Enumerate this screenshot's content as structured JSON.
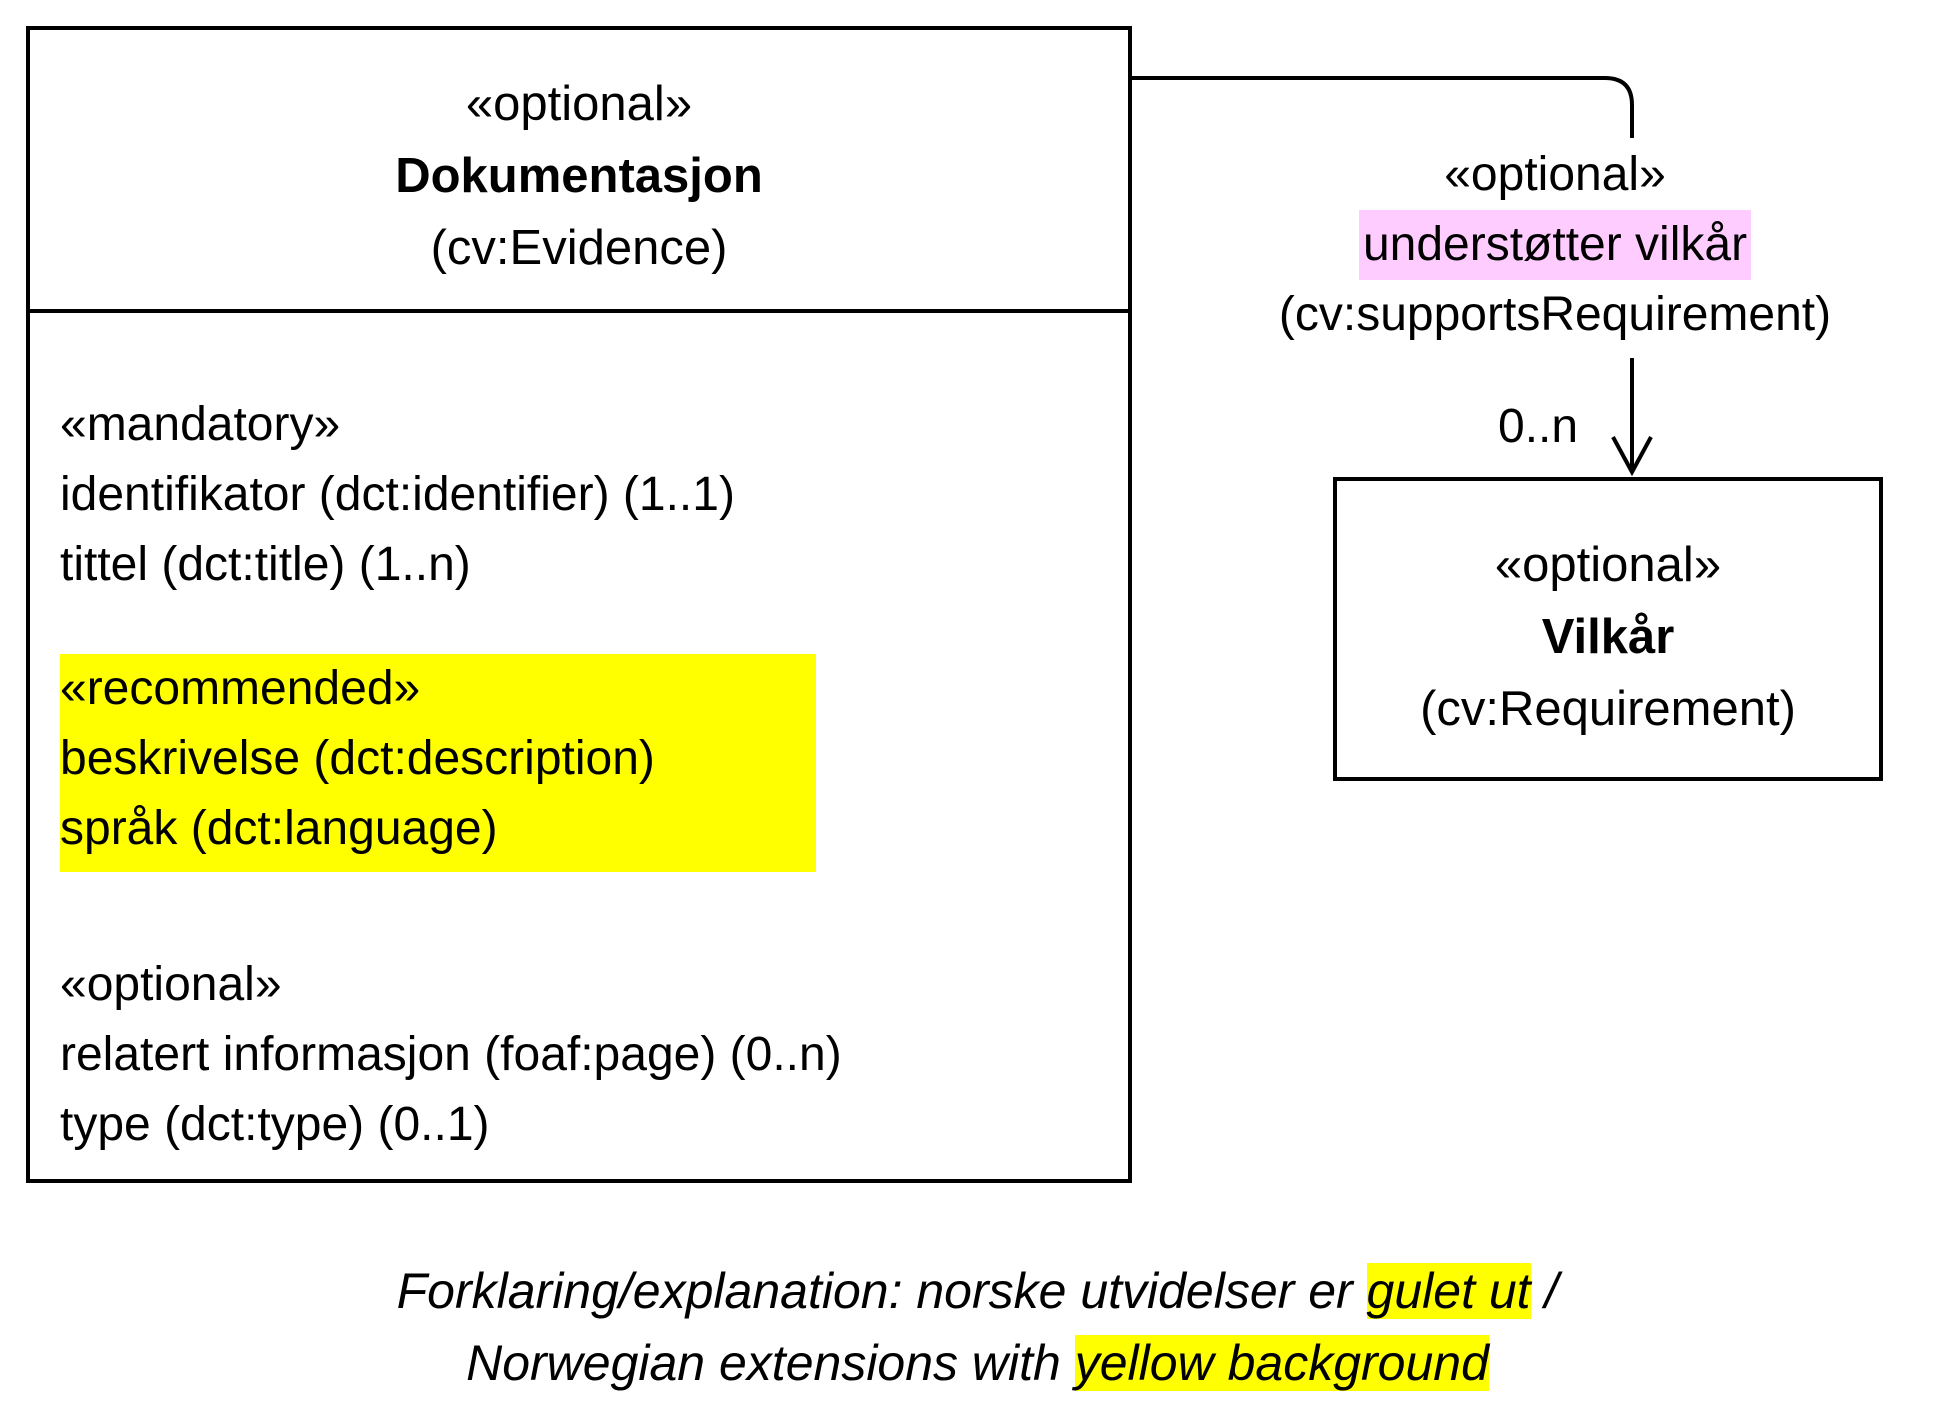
{
  "class_main": {
    "stereotype": "«optional»",
    "name": "Dokumentasjon",
    "uri": "(cv:Evidence)",
    "groups": [
      {
        "stereotype": "«mandatory»",
        "attributes": [
          "identifikator (dct:identifier) (1..1)",
          "tittel (dct:title) (1..n)"
        ]
      },
      {
        "stereotype": "«recommended»",
        "attributes": [
          "beskrivelse (dct:description)",
          "språk (dct:language)"
        ],
        "highlight": "#ffff00"
      },
      {
        "stereotype": "«optional»",
        "attributes": [
          "relatert informasjon (foaf:page) (0..n)",
          "type (dct:type) (0..1)"
        ]
      }
    ]
  },
  "class_target": {
    "stereotype": "«optional»",
    "name": "Vilkår",
    "uri": "(cv:Requirement)"
  },
  "association": {
    "stereotype": "«optional»",
    "name": "understøtter vilkår",
    "uri": "(cv:supportsRequirement)",
    "multiplicity": "0..n",
    "name_highlight": "#ffccff"
  },
  "legend": {
    "line1_prefix": "Forklaring/explanation: norske utvidelser er ",
    "line1_highlight": "gulet ut",
    "line1_suffix": " /",
    "line2_prefix": "Norwegian extensions with ",
    "line2_highlight": "yellow background",
    "highlight_color": "#ffff00"
  }
}
